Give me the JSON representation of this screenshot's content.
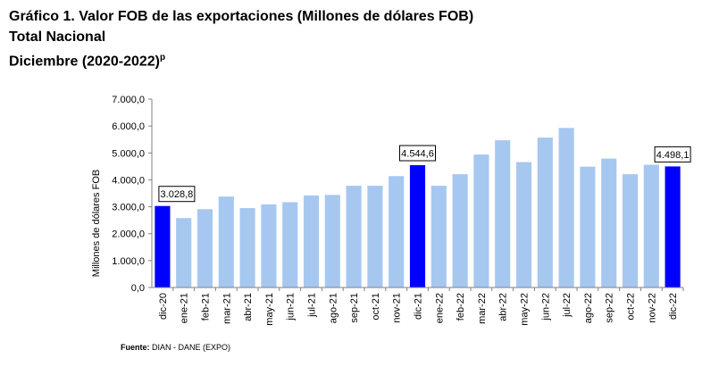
{
  "header": {
    "title": "Gráfico 1. Valor FOB de las exportaciones (Millones de dólares FOB)",
    "subtitle1": "Total Nacional",
    "subtitle2": "Diciembre (2020-2022)",
    "subtitle2_sup": "p"
  },
  "source": {
    "label": "Fuente:",
    "text": "DIAN - DANE (EXPO)"
  },
  "chart_data": {
    "type": "bar",
    "title": "Gráfico 1. Valor FOB de las exportaciones (Millones de dólares FOB)",
    "ylabel": "Millones de dólares FOB",
    "xlabel": "",
    "ylim": [
      0,
      7000
    ],
    "yticks": [
      "0,0",
      "1.000,0",
      "2.000,0",
      "3.000,0",
      "4.000,0",
      "5.000,0",
      "6.000,0",
      "7.000,0"
    ],
    "grid": false,
    "categories": [
      "dic-20",
      "ene-21",
      "feb-21",
      "mar-21",
      "abr-21",
      "may-21",
      "jun-21",
      "jul-21",
      "ago-21",
      "sep-21",
      "oct-21",
      "nov-21",
      "dic-21",
      "ene-22",
      "feb-22",
      "mar-22",
      "abr-22",
      "may-22",
      "jun-22",
      "jul-22",
      "ago-22",
      "sep-22",
      "oct-22",
      "nov-22",
      "dic-22"
    ],
    "values": [
      3028.8,
      2580,
      2910,
      3380,
      2950,
      3090,
      3170,
      3420,
      3440,
      3780,
      3780,
      4140,
      4544.6,
      3780,
      4210,
      4940,
      5470,
      4660,
      5570,
      5930,
      4490,
      4790,
      4210,
      4560,
      4498.1
    ],
    "highlighted": [
      "dic-20",
      "dic-21",
      "dic-22"
    ],
    "data_labels": [
      {
        "category": "dic-20",
        "text": "3.028,8"
      },
      {
        "category": "dic-21",
        "text": "4.544,6"
      },
      {
        "category": "dic-22",
        "text": "4.498,1"
      }
    ],
    "colors": {
      "regular": "#a6c8f0",
      "highlight": "#0000ff"
    }
  }
}
